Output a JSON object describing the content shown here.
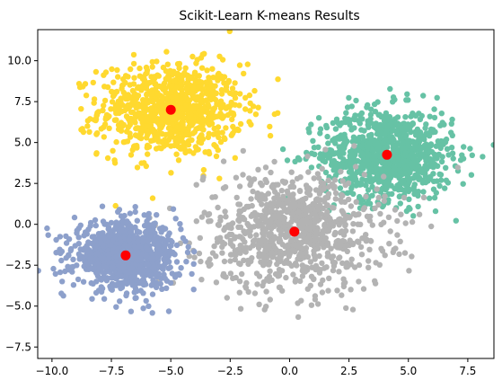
{
  "chart_data": {
    "type": "scatter",
    "title": "Scikit-Learn K-means Results",
    "xlabel": "",
    "ylabel": "",
    "xlim": [
      -10.6,
      8.6
    ],
    "ylim": [
      -8.2,
      11.9
    ],
    "x_ticks": [
      -10.0,
      -7.5,
      -5.0,
      -2.5,
      0.0,
      2.5,
      5.0,
      7.5
    ],
    "x_tick_labels": [
      "−10.0",
      "−7.5",
      "−5.0",
      "−2.5",
      "0.0",
      "2.5",
      "5.0",
      "7.5"
    ],
    "y_ticks": [
      -7.5,
      -5.0,
      -2.5,
      0.0,
      2.5,
      5.0,
      7.5,
      10.0
    ],
    "y_tick_labels": [
      "−7.5",
      "−5.0",
      "−2.5",
      "0.0",
      "2.5",
      "5.0",
      "7.5",
      "10.0"
    ],
    "grid": false,
    "legend": "none",
    "clusters": [
      {
        "color": "#ffd92f",
        "center": [
          -5.0,
          7.0
        ],
        "spread": [
          1.5,
          1.4
        ],
        "count": 900
      },
      {
        "color": "#66c2a5",
        "center": [
          4.1,
          4.25
        ],
        "spread": [
          1.4,
          1.4
        ],
        "count": 900
      },
      {
        "color": "#b3b3b3",
        "center": [
          0.2,
          -0.45
        ],
        "spread": [
          1.9,
          1.8
        ],
        "count": 900
      },
      {
        "color": "#8da0cb",
        "center": [
          -6.9,
          -1.9
        ],
        "spread": [
          1.1,
          1.0
        ],
        "count": 900
      }
    ],
    "centroids": {
      "color": "#ff0000",
      "points": [
        [
          -5.0,
          7.0
        ],
        [
          4.1,
          4.25
        ],
        [
          0.2,
          -0.45
        ],
        [
          -6.9,
          -1.9
        ]
      ]
    }
  }
}
